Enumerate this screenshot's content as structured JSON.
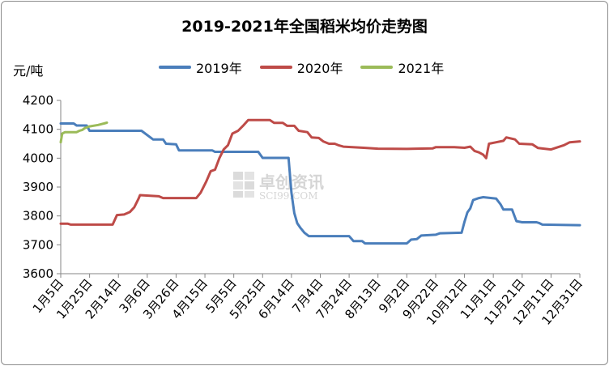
{
  "chart_data": {
    "type": "line",
    "title": "2019-2021年全国稻米均价走势图",
    "ylabel": "元/吨",
    "xlabel": "",
    "ylim": [
      3600,
      4200
    ],
    "yticks": [
      3600,
      3700,
      3800,
      3900,
      4000,
      4100,
      4200
    ],
    "grid": false,
    "legend_position": "top",
    "x_ticks": [
      "1月5日",
      "1月25日",
      "2月14日",
      "3月6日",
      "3月26日",
      "4月15日",
      "5月5日",
      "5月25日",
      "6月14日",
      "7月4日",
      "7月24日",
      "8月13日",
      "9月2日",
      "9月22日",
      "10月12日",
      "11月1日",
      "11月21日",
      "12月11日",
      "12月31日"
    ],
    "series": [
      {
        "name": "2019年",
        "color": "#4a7ebb",
        "points": [
          [
            "1月5日",
            4120
          ],
          [
            "1月14日",
            4120
          ],
          [
            "1月16日",
            4113
          ],
          [
            "1月23日",
            4113
          ],
          [
            "1月25日",
            4095
          ],
          [
            "3月2日",
            4095
          ],
          [
            "3月10日",
            4065
          ],
          [
            "3月17日",
            4065
          ],
          [
            "3月19日",
            4050
          ],
          [
            "3月26日",
            4048
          ],
          [
            "3月28日",
            4027
          ],
          [
            "4月20日",
            4027
          ],
          [
            "4月22日",
            4022
          ],
          [
            "5月22日",
            4022
          ],
          [
            "5月25日",
            4001
          ],
          [
            "6月12日",
            4001
          ],
          [
            "6月14日",
            3880
          ],
          [
            "6月16日",
            3810
          ],
          [
            "6月18日",
            3775
          ],
          [
            "6月20日",
            3760
          ],
          [
            "6月23日",
            3742
          ],
          [
            "6月26日",
            3730
          ],
          [
            "7月24日",
            3730
          ],
          [
            "7月27日",
            3713
          ],
          [
            "8月2日",
            3713
          ],
          [
            "8月4日",
            3705
          ],
          [
            "9月2日",
            3705
          ],
          [
            "9月5日",
            3718
          ],
          [
            "9月9日",
            3720
          ],
          [
            "9月12日",
            3732
          ],
          [
            "9月22日",
            3735
          ],
          [
            "9月25日",
            3740
          ],
          [
            "10月10日",
            3742
          ],
          [
            "10月12日",
            3780
          ],
          [
            "10月14日",
            3812
          ],
          [
            "10月16日",
            3826
          ],
          [
            "10月18日",
            3855
          ],
          [
            "10月22日",
            3862
          ],
          [
            "10月25日",
            3865
          ],
          [
            "11月3日",
            3860
          ],
          [
            "11月6日",
            3840
          ],
          [
            "11月8日",
            3822
          ],
          [
            "11月14日",
            3822
          ],
          [
            "11月17日",
            3782
          ],
          [
            "11月21日",
            3778
          ],
          [
            "12月1日",
            3778
          ],
          [
            "12月3日",
            3775
          ],
          [
            "12月5日",
            3770
          ],
          [
            "12月31日",
            3768
          ]
        ]
      },
      {
        "name": "2020年",
        "color": "#be4b48",
        "points": [
          [
            "1月5日",
            3773
          ],
          [
            "1月10日",
            3773
          ],
          [
            "1月12日",
            3770
          ],
          [
            "2月10日",
            3770
          ],
          [
            "2月13日",
            3803
          ],
          [
            "2月18日",
            3805
          ],
          [
            "2月22日",
            3814
          ],
          [
            "2月25日",
            3830
          ],
          [
            "2月28日",
            3860
          ],
          [
            "3月1日",
            3872
          ],
          [
            "3月14日",
            3868
          ],
          [
            "3月17日",
            3862
          ],
          [
            "4月9日",
            3862
          ],
          [
            "4月12日",
            3880
          ],
          [
            "4月16日",
            3920
          ],
          [
            "4月19日",
            3955
          ],
          [
            "4月22日",
            3960
          ],
          [
            "4月25日",
            4000
          ],
          [
            "4月28日",
            4030
          ],
          [
            "5月1日",
            4045
          ],
          [
            "5月4日",
            4085
          ],
          [
            "5月8日",
            4095
          ],
          [
            "5月12日",
            4115
          ],
          [
            "5月15日",
            4132
          ],
          [
            "5月30日",
            4132
          ],
          [
            "6月2日",
            4122
          ],
          [
            "6月8日",
            4122
          ],
          [
            "6月11日",
            4112
          ],
          [
            "6月16日",
            4112
          ],
          [
            "6月19日",
            4095
          ],
          [
            "6月25日",
            4090
          ],
          [
            "6月28日",
            4072
          ],
          [
            "7月3日",
            4070
          ],
          [
            "7月6日",
            4058
          ],
          [
            "7月10日",
            4050
          ],
          [
            "7月14日",
            4050
          ],
          [
            "7月17日",
            4044
          ],
          [
            "7月20日",
            4040
          ],
          [
            "8月3日",
            4036
          ],
          [
            "8月13日",
            4033
          ],
          [
            "9月2日",
            4032
          ],
          [
            "9月20日",
            4034
          ],
          [
            "9月22日",
            4038
          ],
          [
            "10月5日",
            4038
          ],
          [
            "10月12日",
            4036
          ],
          [
            "10月16日",
            4040
          ],
          [
            "10月19日",
            4025
          ],
          [
            "10月22日",
            4020
          ],
          [
            "10月25日",
            4012
          ],
          [
            "10月27日",
            4000
          ],
          [
            "10月29日",
            4050
          ],
          [
            "11月3日",
            4055
          ],
          [
            "11月8日",
            4060
          ],
          [
            "11月10日",
            4072
          ],
          [
            "11月16日",
            4065
          ],
          [
            "11月19日",
            4050
          ],
          [
            "11月28日",
            4048
          ],
          [
            "12月2日",
            4035
          ],
          [
            "12月11日",
            4030
          ],
          [
            "12月14日",
            4035
          ],
          [
            "12月20日",
            4045
          ],
          [
            "12月24日",
            4055
          ],
          [
            "12月31日",
            4058
          ]
        ]
      },
      {
        "name": "2021年",
        "color": "#9bbb59",
        "points": [
          [
            "1月5日",
            4055
          ],
          [
            "1月6日",
            4085
          ],
          [
            "1月8日",
            4090
          ],
          [
            "1月16日",
            4090
          ],
          [
            "1月18日",
            4095
          ],
          [
            "1月20日",
            4098
          ],
          [
            "1月22日",
            4105
          ],
          [
            "1月25日",
            4110
          ],
          [
            "1月31日",
            4115
          ],
          [
            "2月4日",
            4120
          ],
          [
            "2月6日",
            4123
          ]
        ]
      }
    ]
  },
  "watermark": {
    "text": "卓创资讯",
    "subtext": "SCI99.COM"
  }
}
